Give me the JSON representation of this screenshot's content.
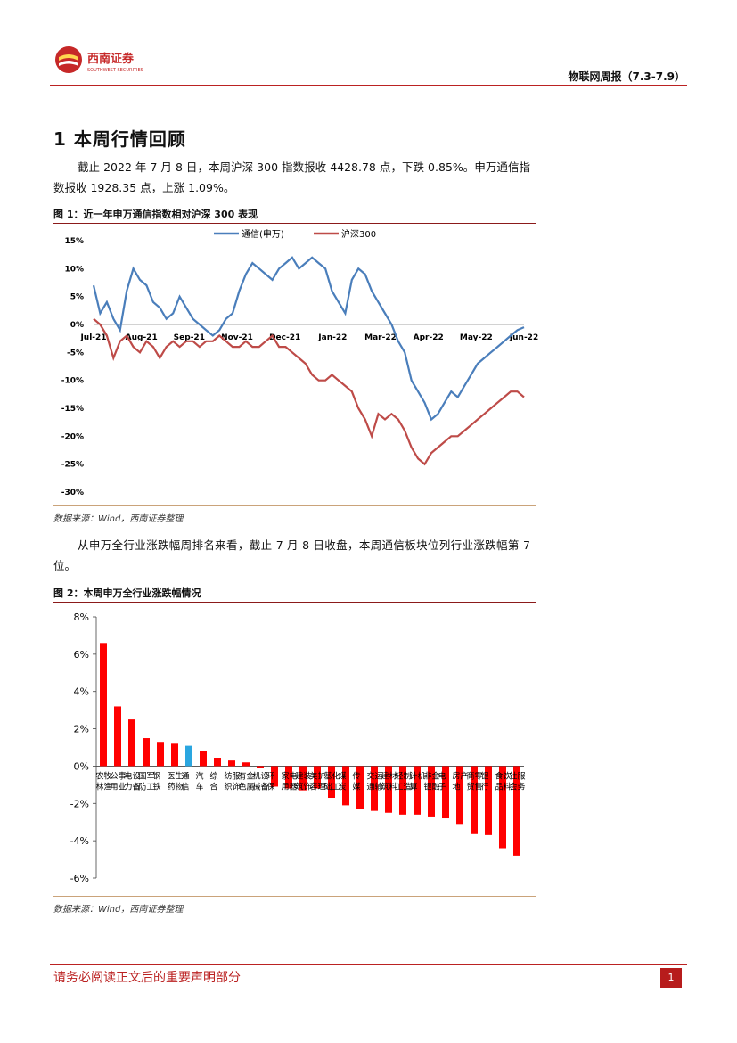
{
  "header": {
    "brand_cn": "西南证券",
    "brand_en": "SOUTHWEST SECURITIES",
    "report_title": "物联网周报（7.3-7.9）",
    "logo_color": "#c62828"
  },
  "section": {
    "title": "1 本周行情回顾"
  },
  "para1": "截止 2022 年 7 月 8 日，本周沪深 300 指数报收 4428.78 点，下跌 0.85%。申万通信指数报收 1928.35 点，上涨 1.09%。",
  "fig1": {
    "title": "图 1：近一年申万通信指数相对沪深 300 表现",
    "source": "数据来源：Wind，西南证券整理"
  },
  "para2": "从申万全行业涨跌幅周排名来看，截止 7 月 8 日收盘，本周通信板块位列行业涨跌幅第 7 位。",
  "fig2": {
    "title": "图 2：本周申万全行业涨跌幅情况",
    "source": "数据来源：Wind，西南证券整理"
  },
  "footer": {
    "disclaimer": "请务必阅读正文后的重要声明部分",
    "page": "1"
  },
  "chart_data": [
    {
      "type": "line",
      "title": "近一年申万通信指数相对沪深 300 表现",
      "x_ticks": [
        "Jul-21",
        "Aug-21",
        "Sep-21",
        "Nov-21",
        "Dec-21",
        "Jan-22",
        "Mar-22",
        "Apr-22",
        "May-22",
        "Jun-22"
      ],
      "y_ticks": [
        "15%",
        "10%",
        "5%",
        "0%",
        "-5%",
        "-10%",
        "-15%",
        "-20%",
        "-25%",
        "-30%"
      ],
      "ylim": [
        -30,
        15
      ],
      "colors": {
        "通信(申万)": "#4a7ebb",
        "沪深300": "#be4b48"
      },
      "series": [
        {
          "name": "通信(申万)",
          "values": [
            7,
            2,
            4,
            1,
            -1,
            6,
            10,
            8,
            7,
            4,
            3,
            1,
            2,
            5,
            3,
            1,
            0,
            -1,
            -2,
            -1,
            1,
            2,
            6,
            9,
            11,
            10,
            9,
            8,
            10,
            11,
            12,
            10,
            11,
            12,
            11,
            10,
            6,
            4,
            2,
            8,
            10,
            9,
            6,
            4,
            2,
            0,
            -3,
            -5,
            -10,
            -12,
            -14,
            -17,
            -16,
            -14,
            -12,
            -13,
            -11,
            -9,
            -7,
            -6,
            -5,
            -4,
            -3,
            -2,
            -1,
            -0.5
          ]
        },
        {
          "name": "沪深300",
          "values": [
            1,
            0,
            -2,
            -6,
            -3,
            -2,
            -4,
            -5,
            -3,
            -4,
            -6,
            -4,
            -3,
            -4,
            -3,
            -3,
            -4,
            -3,
            -3,
            -2,
            -3,
            -4,
            -4,
            -3,
            -4,
            -4,
            -3,
            -2,
            -4,
            -4,
            -5,
            -6,
            -7,
            -9,
            -10,
            -10,
            -9,
            -10,
            -11,
            -12,
            -15,
            -17,
            -20,
            -16,
            -17,
            -16,
            -17,
            -19,
            -22,
            -24,
            -25,
            -23,
            -22,
            -21,
            -20,
            -20,
            -19,
            -18,
            -17,
            -16,
            -15,
            -14,
            -13,
            -12,
            -12,
            -13
          ]
        }
      ]
    },
    {
      "type": "bar",
      "title": "本周申万全行业涨跌幅情况",
      "ylim": [
        -6,
        8
      ],
      "y_ticks": [
        "8%",
        "6%",
        "4%",
        "2%",
        "0%",
        "-2%",
        "-4%",
        "-6%"
      ],
      "colors": {
        "default": "#ff0000",
        "highlight": "#2aa6e0"
      },
      "highlight_category": "通信",
      "categories": [
        "农林牧渔",
        "公用事业",
        "电力设备",
        "国防军工",
        "钢铁",
        "医药生物",
        "通信",
        "汽车",
        "综合",
        "纺织服饰",
        "有色金属",
        "机械设备",
        "环保",
        "家用电器",
        "建筑装饰",
        "美容护理",
        "基础化工",
        "煤炭",
        "传媒",
        "交通运输",
        "建筑材料",
        "轻工制造",
        "计算机",
        "非银金融",
        "电子",
        "房地产",
        "商贸零售",
        "银行",
        "食品饮料",
        "社会服务"
      ],
      "values": [
        6.6,
        3.2,
        2.5,
        1.5,
        1.3,
        1.2,
        1.09,
        0.8,
        0.45,
        0.3,
        0.2,
        -0.1,
        -1.1,
        -1.2,
        -1.3,
        -1.2,
        -1.7,
        -2.1,
        -2.3,
        -2.4,
        -2.5,
        -2.6,
        -2.6,
        -2.7,
        -2.8,
        -3.1,
        -3.6,
        -3.7,
        -4.4,
        -4.8
      ]
    }
  ]
}
